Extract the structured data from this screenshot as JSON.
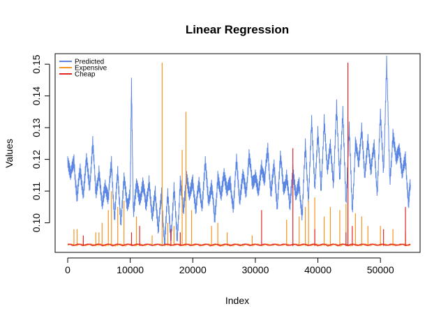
{
  "chart_data": {
    "type": "line",
    "title": "Linear Regression",
    "xlabel": "Index",
    "ylabel": "Values",
    "xlim": [
      0,
      55000
    ],
    "ylim": [
      0.092,
      0.152
    ],
    "x_ticks": [
      0,
      10000,
      20000,
      30000,
      40000,
      50000
    ],
    "x_tick_labels": [
      "0",
      "10000",
      "20000",
      "30000",
      "40000",
      "50000"
    ],
    "y_ticks": [
      0.1,
      0.11,
      0.12,
      0.13,
      0.14,
      0.15
    ],
    "y_tick_labels": [
      "0.10",
      "0.11",
      "0.12",
      "0.13",
      "0.14",
      "0.15"
    ],
    "grid": false,
    "legend_position": "top-left",
    "series": [
      {
        "name": "Predicted",
        "color": "#5b86e3",
        "x": [
          0,
          500,
          1000,
          1500,
          2000,
          2500,
          3000,
          3500,
          4000,
          4500,
          5000,
          5500,
          6000,
          6500,
          7000,
          7500,
          8000,
          8500,
          9000,
          9500,
          10000,
          10200,
          10500,
          11000,
          11500,
          12000,
          12500,
          13000,
          13500,
          14000,
          14500,
          15000,
          15500,
          16000,
          16500,
          17000,
          17500,
          18000,
          18500,
          19000,
          19500,
          20000,
          20500,
          21000,
          21500,
          22000,
          22500,
          23000,
          23500,
          24000,
          24500,
          25000,
          25500,
          26000,
          26500,
          27000,
          27500,
          28000,
          28500,
          29000,
          29500,
          30000,
          30500,
          31000,
          31500,
          32000,
          32500,
          33000,
          33500,
          34000,
          34500,
          35000,
          35500,
          36000,
          36500,
          37000,
          37500,
          38000,
          38500,
          39000,
          39500,
          40000,
          40500,
          41000,
          41500,
          42000,
          42500,
          43000,
          43500,
          44000,
          44500,
          45000,
          45500,
          46000,
          46500,
          47000,
          47500,
          48000,
          48500,
          49000,
          49500,
          50000,
          50500,
          51000,
          51500,
          52000,
          52500,
          53000,
          53500,
          54000,
          54500,
          54800
        ],
        "y": [
          0.121,
          0.114,
          0.12,
          0.108,
          0.116,
          0.11,
          0.119,
          0.112,
          0.125,
          0.109,
          0.117,
          0.104,
          0.113,
          0.107,
          0.119,
          0.102,
          0.115,
          0.101,
          0.113,
          0.106,
          0.11,
          0.143,
          0.104,
          0.111,
          0.108,
          0.112,
          0.105,
          0.114,
          0.1,
          0.111,
          0.097,
          0.109,
          0.094,
          0.108,
          0.096,
          0.11,
          0.095,
          0.113,
          0.103,
          0.116,
          0.107,
          0.114,
          0.104,
          0.112,
          0.106,
          0.118,
          0.108,
          0.111,
          0.101,
          0.115,
          0.107,
          0.117,
          0.109,
          0.113,
          0.105,
          0.119,
          0.108,
          0.114,
          0.11,
          0.121,
          0.112,
          0.116,
          0.108,
          0.119,
          0.113,
          0.123,
          0.11,
          0.117,
          0.106,
          0.12,
          0.111,
          0.115,
          0.104,
          0.118,
          0.107,
          0.113,
          0.102,
          0.124,
          0.108,
          0.131,
          0.112,
          0.128,
          0.11,
          0.133,
          0.115,
          0.126,
          0.111,
          0.137,
          0.114,
          0.134,
          0.107,
          0.129,
          0.104,
          0.125,
          0.118,
          0.131,
          0.113,
          0.127,
          0.116,
          0.124,
          0.11,
          0.133,
          0.117,
          0.15,
          0.113,
          0.128,
          0.119,
          0.125,
          0.114,
          0.121,
          0.106,
          0.112
        ]
      },
      {
        "name": "Expensive",
        "color": "#f5941f",
        "x": [
          1000,
          1500,
          2500,
          4500,
          5000,
          5500,
          6500,
          7000,
          8000,
          9000,
          11000,
          13500,
          15100,
          16000,
          17000,
          18300,
          18900,
          19800,
          23000,
          24000,
          25500,
          29500,
          35000,
          37000,
          38000,
          38500,
          39500,
          41000,
          42000,
          43500,
          44500,
          46000,
          47000,
          48000,
          50000,
          52000,
          54000
        ],
        "y": [
          0.098,
          0.098,
          0.095,
          0.097,
          0.097,
          0.1,
          0.104,
          0.11,
          0.105,
          0.107,
          0.102,
          0.096,
          0.1505,
          0.1,
          0.099,
          0.123,
          0.135,
          0.104,
          0.099,
          0.1,
          0.097,
          0.096,
          0.101,
          0.102,
          0.105,
          0.107,
          0.108,
          0.102,
          0.105,
          0.104,
          0.106,
          0.103,
          0.102,
          0.099,
          0.099,
          0.098,
          0.097
        ]
      },
      {
        "name": "Cheap",
        "color": "#e32222",
        "x": [
          2500,
          10200,
          11500,
          16500,
          18000,
          31000,
          36000,
          39500,
          44500,
          44800,
          45500,
          50500,
          54000
        ],
        "y": [
          0.096,
          0.097,
          0.099,
          0.098,
          0.097,
          0.104,
          0.1235,
          0.098,
          0.097,
          0.1505,
          0.099,
          0.098,
          0.105
        ]
      }
    ],
    "baseline": 0.0927
  }
}
